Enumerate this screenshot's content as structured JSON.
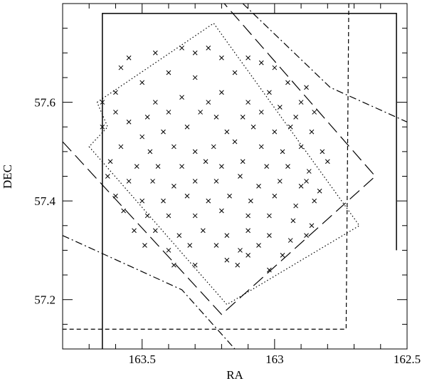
{
  "chart_data": {
    "type": "scatter",
    "xlabel": "RA",
    "ylabel": "DEC",
    "xlim": [
      163.8,
      162.5
    ],
    "ylim": [
      57.1,
      57.8
    ],
    "xticks": [
      163.5,
      163,
      162.5
    ],
    "yticks": [
      57.2,
      57.4,
      57.6
    ],
    "minor_ticks": true,
    "series": [
      {
        "marker": "x",
        "color": "#000000",
        "x": [
          163.55,
          163.45,
          163.35,
          163.3,
          163.25,
          163.2,
          163.1,
          163.05,
          163.0,
          163.4,
          163.5,
          163.6,
          163.3,
          163.15,
          162.95,
          163.02,
          162.9,
          162.88,
          163.45,
          163.35,
          163.25,
          163.2,
          163.1,
          163.6,
          163.55,
          163.48,
          163.4,
          163.28,
          163.22,
          163.12,
          163.05,
          162.98,
          162.92,
          162.85,
          163.65,
          163.5,
          163.42,
          163.33,
          163.18,
          163.08,
          163.0,
          162.94,
          162.86,
          163.58,
          163.47,
          163.38,
          163.3,
          163.23,
          163.15,
          163.05,
          162.97,
          162.9,
          162.82,
          163.62,
          163.52,
          163.44,
          163.35,
          163.26,
          163.2,
          163.12,
          163.03,
          162.95,
          162.87,
          162.8,
          163.63,
          163.55,
          163.46,
          163.38,
          163.3,
          163.22,
          163.13,
          163.06,
          162.98,
          162.9,
          162.83,
          163.6,
          163.5,
          163.42,
          163.33,
          163.25,
          163.17,
          163.09,
          163.0,
          162.92,
          162.85,
          163.57,
          163.48,
          163.4,
          163.3,
          163.2,
          163.1,
          163.02,
          162.93,
          162.86,
          163.53,
          163.45,
          163.36,
          163.27,
          163.18,
          163.1,
          163.02,
          162.94,
          162.88,
          163.49,
          163.4,
          163.32,
          163.22,
          163.13,
          163.06,
          162.97,
          163.38,
          163.3,
          163.18,
          163.14,
          163.1,
          163.02,
          163.65,
          163.58,
          162.88
        ],
        "y": [
          57.69,
          57.7,
          57.71,
          57.7,
          57.71,
          57.69,
          57.69,
          57.68,
          57.67,
          57.66,
          57.64,
          57.62,
          57.65,
          57.66,
          57.64,
          57.62,
          57.6,
          57.63,
          57.6,
          57.61,
          57.6,
          57.62,
          57.6,
          57.58,
          57.56,
          57.57,
          57.58,
          57.58,
          57.57,
          57.57,
          57.58,
          57.59,
          57.57,
          57.58,
          57.55,
          57.53,
          57.54,
          57.55,
          57.54,
          57.55,
          57.54,
          57.55,
          57.54,
          57.51,
          57.5,
          57.51,
          57.5,
          57.51,
          57.52,
          57.51,
          57.5,
          57.51,
          57.5,
          57.48,
          57.47,
          57.47,
          57.47,
          57.48,
          57.47,
          57.48,
          57.47,
          57.47,
          57.46,
          57.48,
          57.45,
          57.44,
          57.44,
          57.43,
          57.44,
          57.44,
          57.45,
          57.43,
          57.44,
          57.43,
          57.42,
          57.41,
          57.4,
          57.4,
          57.41,
          57.4,
          57.41,
          57.4,
          57.41,
          57.39,
          57.4,
          57.38,
          57.37,
          57.37,
          57.37,
          57.38,
          57.37,
          57.37,
          57.36,
          57.35,
          57.34,
          57.34,
          57.33,
          57.34,
          57.33,
          57.34,
          57.33,
          57.32,
          57.33,
          57.31,
          57.3,
          57.31,
          57.31,
          57.3,
          57.31,
          57.29,
          57.27,
          57.27,
          57.28,
          57.27,
          57.29,
          57.26,
          57.6,
          57.67,
          57.44
        ]
      }
    ],
    "outlines": [
      {
        "style": "solid",
        "x": [
          163.65,
          163.65,
          162.54,
          162.54
        ],
        "y": [
          57.1,
          57.78,
          57.78,
          57.3
        ]
      },
      {
        "style": "short-dash",
        "x": [
          162.72,
          162.73,
          163.8
        ],
        "y": [
          57.8,
          57.14,
          57.14
        ]
      },
      {
        "style": "long-dash",
        "x": [
          163.8,
          163.2,
          162.62,
          163.19
        ],
        "y": [
          57.52,
          57.17,
          57.45,
          57.8
        ]
      },
      {
        "style": "dotted",
        "x": [
          163.67,
          163.23,
          162.68,
          163.18,
          163.7,
          163.63,
          163.67
        ],
        "y": [
          57.6,
          57.76,
          57.35,
          57.19,
          57.51,
          57.55,
          57.6
        ]
      },
      {
        "style": "dash-dot",
        "x": [
          163.8,
          163.35,
          163.15
        ],
        "y": [
          57.33,
          57.22,
          57.1
        ]
      },
      {
        "style": "dash-dot",
        "x": [
          163.12,
          162.79,
          162.5
        ],
        "y": [
          57.8,
          57.63,
          57.56
        ]
      }
    ]
  }
}
